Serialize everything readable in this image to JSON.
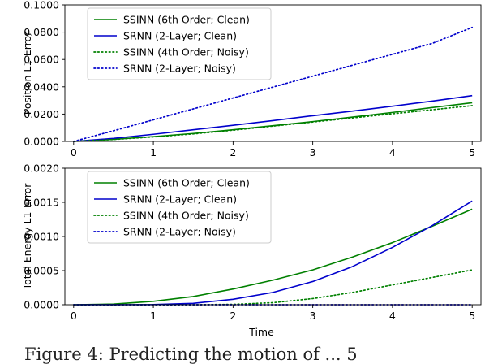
{
  "chart_data": [
    {
      "type": "line",
      "title": "",
      "xlabel": "",
      "ylabel": "Position L1-Error",
      "xlim": [
        0,
        5
      ],
      "ylim": [
        0,
        0.1
      ],
      "xticks": [
        "0",
        "1",
        "2",
        "3",
        "4",
        "5"
      ],
      "yticks": [
        "0.0000",
        "0.0200",
        "0.0400",
        "0.0600",
        "0.0800",
        "0.1000"
      ],
      "grid": false,
      "legend_position": "top-left",
      "x": [
        0,
        0.5,
        1,
        1.5,
        2,
        2.5,
        3,
        3.5,
        4,
        4.5,
        5
      ],
      "series": [
        {
          "name": "SSINN (6th Order; Clean)",
          "color": "#008000",
          "style": "solid",
          "values": [
            0,
            0.0015,
            0.0035,
            0.0058,
            0.0085,
            0.0115,
            0.0145,
            0.0178,
            0.0212,
            0.0248,
            0.0283
          ]
        },
        {
          "name": "SRNN (2-Layer; Clean)",
          "color": "#0000cc",
          "style": "solid",
          "values": [
            0,
            0.0022,
            0.0052,
            0.0085,
            0.0118,
            0.0152,
            0.0188,
            0.0222,
            0.0258,
            0.0295,
            0.0335
          ]
        },
        {
          "name": "SSINN (4th Order; Noisy)",
          "color": "#008000",
          "style": "dotted",
          "values": [
            0,
            0.0014,
            0.0033,
            0.0055,
            0.0082,
            0.0112,
            0.0142,
            0.0172,
            0.0202,
            0.0232,
            0.0262
          ]
        },
        {
          "name": "SRNN (2-Layer; Noisy)",
          "color": "#0000cc",
          "style": "dotted",
          "values": [
            0,
            0.0078,
            0.0158,
            0.0238,
            0.0318,
            0.0398,
            0.0478,
            0.0558,
            0.0638,
            0.0718,
            0.0835
          ]
        }
      ]
    },
    {
      "type": "line",
      "title": "",
      "xlabel": "Time",
      "ylabel": "Total Energy L1-Error",
      "xlim": [
        0,
        5
      ],
      "ylim": [
        0,
        0.002
      ],
      "xticks": [
        "0",
        "1",
        "2",
        "3",
        "4",
        "5"
      ],
      "yticks": [
        "0.0000",
        "0.0005",
        "0.0010",
        "0.0015",
        "0.0020"
      ],
      "grid": false,
      "legend_position": "top-left",
      "x": [
        0,
        0.5,
        1,
        1.5,
        2,
        2.5,
        3,
        3.5,
        4,
        4.5,
        5
      ],
      "series": [
        {
          "name": "SSINN (6th Order; Clean)",
          "color": "#008000",
          "style": "solid",
          "values": [
            0,
            1e-05,
            5e-05,
            0.00012,
            0.00023,
            0.00036,
            0.00051,
            0.0007,
            0.00091,
            0.00115,
            0.0014
          ]
        },
        {
          "name": "SRNN (2-Layer; Clean)",
          "color": "#0000cc",
          "style": "solid",
          "values": [
            0,
            0,
            2e-06,
            2e-05,
            8e-05,
            0.00018,
            0.00034,
            0.00056,
            0.00084,
            0.00116,
            0.00152
          ]
        },
        {
          "name": "SSINN (4th Order; Noisy)",
          "color": "#008000",
          "style": "dotted",
          "values": [
            0,
            0,
            0,
            0,
            5e-06,
            3e-05,
            9e-05,
            0.00018,
            0.00029,
            0.0004,
            0.00051
          ]
        },
        {
          "name": "SRNN (2-Layer; Noisy)",
          "color": "#0000cc",
          "style": "dotted",
          "values": [
            0,
            0,
            0,
            0,
            0,
            0,
            0,
            0,
            0,
            0,
            0
          ]
        }
      ]
    }
  ],
  "caption": "Figure 4:  Predicting the motion of ... 5"
}
